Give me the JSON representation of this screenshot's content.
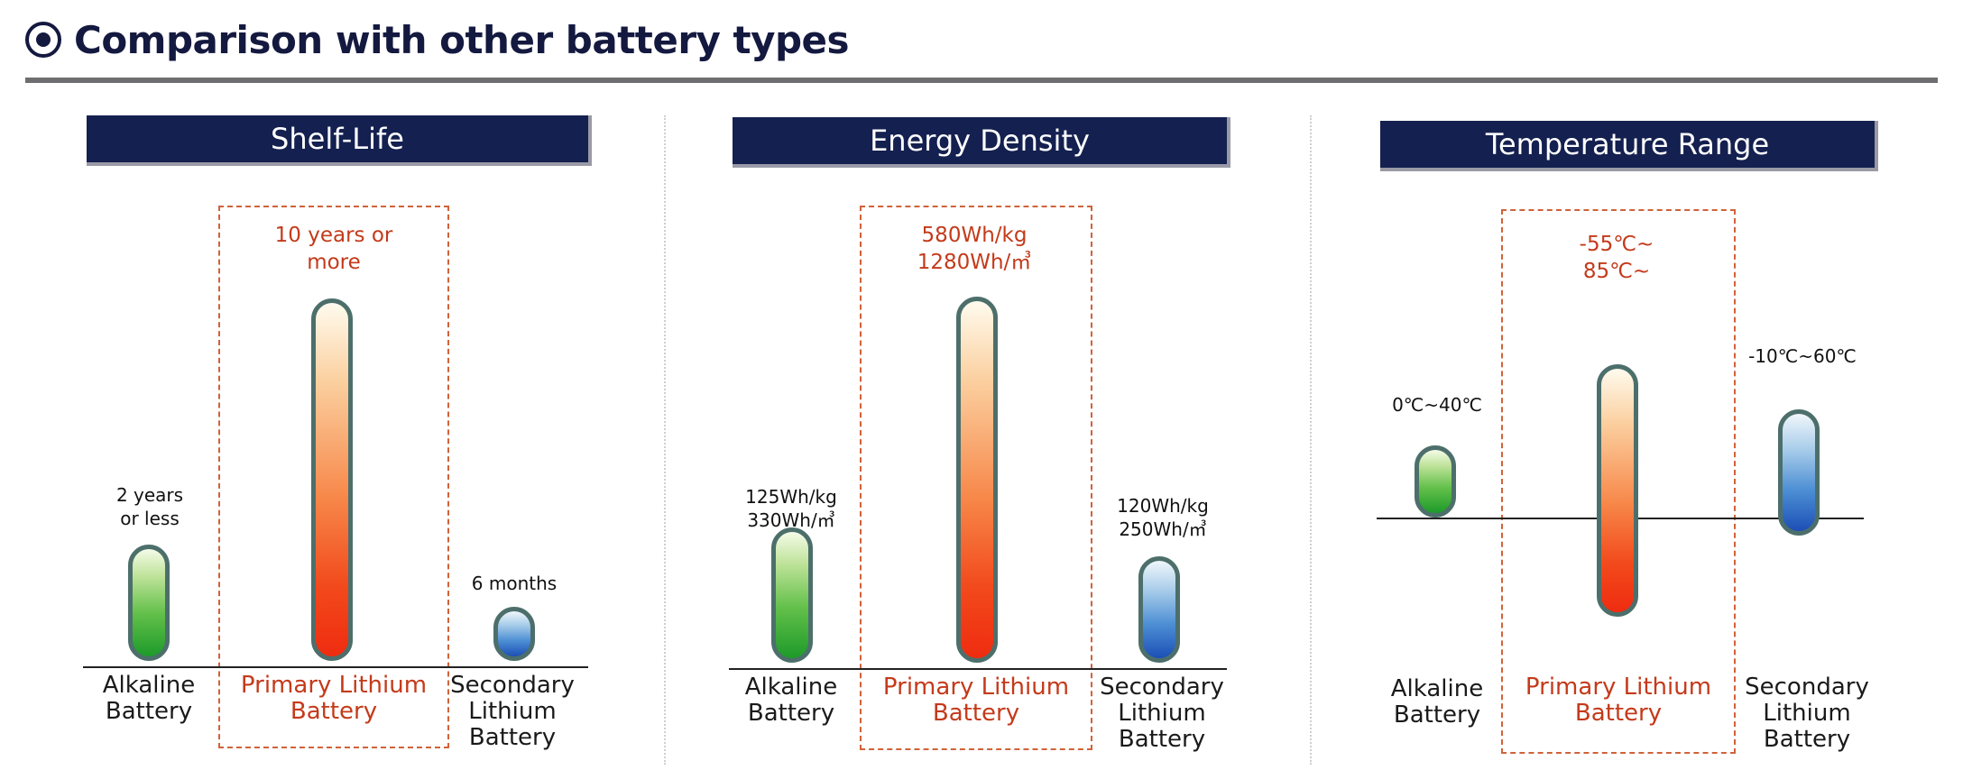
{
  "header": {
    "title": "Comparison with other battery types",
    "icon": "target-icon"
  },
  "colors": {
    "header_bg": "#14204f",
    "accent": "#c43a1a",
    "title": "#14193f"
  },
  "panels": [
    {
      "id": "shelf-life",
      "title": "Shelf-Life",
      "batteries": [
        {
          "category": "Alkaline\nBattery",
          "value_label": "2 years\nor less",
          "color": "green",
          "level": 0.32
        },
        {
          "category": "Primary Lithium\nBattery",
          "value_label": "10 years or\nmore",
          "color": "orange",
          "level": 1.0
        },
        {
          "category": "Secondary\nLithium\nBattery",
          "value_label": "6 months",
          "color": "blue",
          "level": 0.15
        }
      ]
    },
    {
      "id": "energy-density",
      "title": "Energy Density",
      "batteries": [
        {
          "category": "Alkaline\nBattery",
          "value_label": "125Wh/kg\n330Wh/㎥",
          "color": "green",
          "level": 0.37
        },
        {
          "category": "Primary Lithium\nBattery",
          "value_label": "580Wh/kg\n1280Wh/㎥",
          "color": "orange",
          "level": 1.0
        },
        {
          "category": "Secondary\nLithium\nBattery",
          "value_label": "120Wh/kg\n250Wh/㎥",
          "color": "blue",
          "level": 0.29
        }
      ]
    },
    {
      "id": "temperature-range",
      "title": "Temperature Range",
      "batteries": [
        {
          "category": "Alkaline\nBattery",
          "value_label": "0℃~40℃",
          "color": "green",
          "range": [
            0,
            40
          ]
        },
        {
          "category": "Primary Lithium\nBattery",
          "value_label": "-55℃~\n85℃~",
          "color": "orange",
          "range": [
            -55,
            85
          ]
        },
        {
          "category": "Secondary\nLithium\nBattery",
          "value_label": "-10℃~60℃",
          "color": "blue",
          "range": [
            -10,
            60
          ]
        }
      ]
    }
  ]
}
